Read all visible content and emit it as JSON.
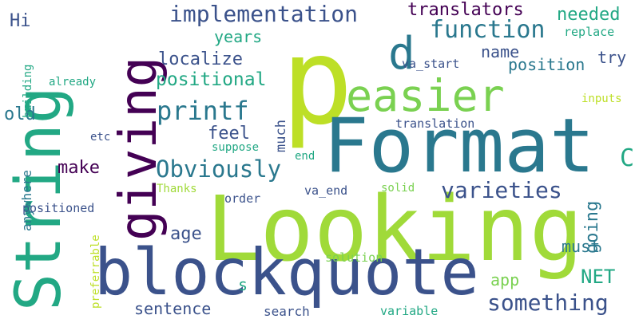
{
  "words": [
    {
      "text": "p",
      "color": "#bddf26"
    },
    {
      "text": "Looking",
      "color": "#a0da39"
    },
    {
      "text": "Format",
      "color": "#2a788e"
    },
    {
      "text": "String",
      "color": "#22a884"
    },
    {
      "text": "blockquote",
      "color": "#3b528b"
    },
    {
      "text": "giving",
      "color": "#440154"
    },
    {
      "text": "easier",
      "color": "#7ad151"
    },
    {
      "text": "d",
      "color": "#2a788e"
    },
    {
      "text": "implementation",
      "color": "#3b528b"
    },
    {
      "text": "function",
      "color": "#2a788e"
    },
    {
      "text": "printf",
      "color": "#2a788e"
    },
    {
      "text": "Obviously",
      "color": "#2a788e"
    },
    {
      "text": "varieties",
      "color": "#3b528b"
    },
    {
      "text": "something",
      "color": "#3b528b"
    },
    {
      "text": "translators",
      "color": "#440154"
    },
    {
      "text": "positional",
      "color": "#22a884"
    },
    {
      "text": "localize",
      "color": "#3b528b"
    },
    {
      "text": "needed",
      "color": "#22a884"
    },
    {
      "text": "years",
      "color": "#22a884"
    },
    {
      "text": "name",
      "color": "#3b528b"
    },
    {
      "text": "position",
      "color": "#2a788e"
    },
    {
      "text": "try",
      "color": "#3b528b"
    },
    {
      "text": "old",
      "color": "#2a788e"
    },
    {
      "text": "feel",
      "color": "#3b528b"
    },
    {
      "text": "much",
      "color": "#3b528b"
    },
    {
      "text": "make",
      "color": "#440154"
    },
    {
      "text": "age",
      "color": "#3b528b"
    },
    {
      "text": "going",
      "color": "#2a788e"
    },
    {
      "text": "must",
      "color": "#2a788e"
    },
    {
      "text": "NET",
      "color": "#22a884"
    },
    {
      "text": "app",
      "color": "#7ad151"
    },
    {
      "text": "C",
      "color": "#22a884"
    },
    {
      "text": "s",
      "color": "#22a884"
    },
    {
      "text": "sentence",
      "color": "#3b528b"
    },
    {
      "text": "search",
      "color": "#3b528b"
    },
    {
      "text": "variable",
      "color": "#22a884"
    },
    {
      "text": "solution",
      "color": "#7ad151"
    },
    {
      "text": "solid",
      "color": "#7ad151"
    },
    {
      "text": "va_end",
      "color": "#3b528b"
    },
    {
      "text": "va_start",
      "color": "#3b528b"
    },
    {
      "text": "replace",
      "color": "#22a884"
    },
    {
      "text": "inputs",
      "color": "#bddf26"
    },
    {
      "text": "translation",
      "color": "#3b528b"
    },
    {
      "text": "end",
      "color": "#22a884"
    },
    {
      "text": "suppose",
      "color": "#22a884"
    },
    {
      "text": "etc",
      "color": "#3b528b"
    },
    {
      "text": "Thanks",
      "color": "#a0da39"
    },
    {
      "text": "order",
      "color": "#3b528b"
    },
    {
      "text": "positioned",
      "color": "#3b528b"
    },
    {
      "text": "already",
      "color": "#22a884"
    },
    {
      "text": "building",
      "color": "#22a884"
    },
    {
      "text": "anywhere",
      "color": "#2a788e"
    },
    {
      "text": "preferrable",
      "color": "#bddf26"
    },
    {
      "text": "Hi",
      "color": "#3b528b"
    }
  ]
}
